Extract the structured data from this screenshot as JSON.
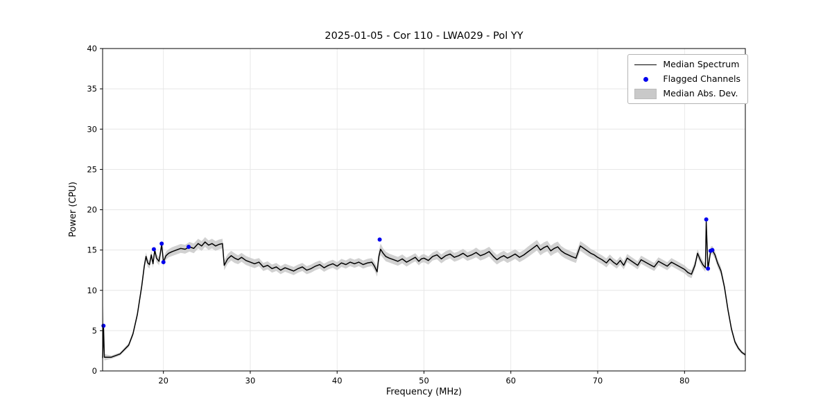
{
  "chart_data": {
    "type": "line",
    "title": "2025-01-05 - Cor 110 - LWA029 - Pol YY",
    "xlabel": "Frequency (MHz)",
    "ylabel": "Power (CPU)",
    "xlim": [
      13,
      87
    ],
    "ylim": [
      0,
      40
    ],
    "xticks": [
      20,
      30,
      40,
      50,
      60,
      70,
      80
    ],
    "yticks": [
      0,
      5,
      10,
      15,
      20,
      25,
      30,
      35,
      40
    ],
    "grid": true,
    "colors": {
      "median_line": "#000000",
      "flagged": "#0000ee",
      "mad_band": "#c9c9c9",
      "grid": "#e6e6e6",
      "spine": "#000000"
    },
    "legend": {
      "position": "upper right",
      "items": [
        {
          "label": "Median Spectrum",
          "type": "line",
          "color": "#000000"
        },
        {
          "label": "Flagged Channels",
          "type": "marker",
          "color": "#0000ee"
        },
        {
          "label": "Median Abs. Dev.",
          "type": "patch",
          "color": "#c9c9c9"
        }
      ]
    },
    "series": [
      {
        "name": "Median Spectrum",
        "note": "points are [frequency_MHz, power_CPU, median_abs_dev]",
        "points": [
          [
            13.0,
            1.6,
            0.3
          ],
          [
            13.1,
            5.6,
            2.6
          ],
          [
            13.2,
            1.7,
            0.4
          ],
          [
            14.0,
            1.7,
            0.2
          ],
          [
            15.0,
            2.1,
            0.2
          ],
          [
            16.0,
            3.2,
            0.25
          ],
          [
            16.5,
            4.6,
            0.3
          ],
          [
            17.0,
            7.0,
            0.35
          ],
          [
            17.5,
            10.5,
            0.4
          ],
          [
            17.8,
            13.0,
            0.45
          ],
          [
            18.0,
            14.2,
            0.5
          ],
          [
            18.2,
            13.4,
            0.5
          ],
          [
            18.4,
            13.2,
            0.5
          ],
          [
            18.6,
            14.4,
            0.5
          ],
          [
            18.8,
            13.3,
            0.5
          ],
          [
            19.0,
            15.0,
            0.5
          ],
          [
            19.2,
            14.0,
            0.5
          ],
          [
            19.5,
            13.6,
            0.5
          ],
          [
            19.8,
            15.7,
            0.5
          ],
          [
            20.0,
            13.5,
            0.5
          ],
          [
            20.3,
            14.3,
            0.5
          ],
          [
            20.6,
            14.6,
            0.5
          ],
          [
            21.0,
            14.8,
            0.55
          ],
          [
            21.5,
            15.0,
            0.55
          ],
          [
            22.0,
            15.2,
            0.55
          ],
          [
            22.5,
            15.1,
            0.55
          ],
          [
            23.0,
            15.4,
            0.6
          ],
          [
            23.5,
            15.2,
            0.6
          ],
          [
            24.0,
            15.8,
            0.6
          ],
          [
            24.4,
            15.5,
            0.6
          ],
          [
            24.8,
            16.0,
            0.6
          ],
          [
            25.2,
            15.6,
            0.6
          ],
          [
            25.6,
            15.8,
            0.6
          ],
          [
            26.0,
            15.5,
            0.6
          ],
          [
            26.4,
            15.7,
            0.6
          ],
          [
            26.8,
            15.8,
            0.6
          ],
          [
            27.0,
            13.1,
            0.6
          ],
          [
            27.4,
            13.9,
            0.6
          ],
          [
            27.8,
            14.3,
            0.6
          ],
          [
            28.2,
            14.0,
            0.6
          ],
          [
            28.6,
            13.8,
            0.55
          ],
          [
            29.0,
            14.1,
            0.55
          ],
          [
            29.5,
            13.7,
            0.55
          ],
          [
            30.0,
            13.5,
            0.55
          ],
          [
            30.5,
            13.3,
            0.55
          ],
          [
            31.0,
            13.5,
            0.5
          ],
          [
            31.5,
            12.9,
            0.5
          ],
          [
            32.0,
            13.1,
            0.5
          ],
          [
            32.5,
            12.7,
            0.5
          ],
          [
            33.0,
            12.9,
            0.5
          ],
          [
            33.5,
            12.5,
            0.5
          ],
          [
            34.0,
            12.8,
            0.5
          ],
          [
            34.5,
            12.6,
            0.5
          ],
          [
            35.0,
            12.4,
            0.5
          ],
          [
            35.5,
            12.7,
            0.5
          ],
          [
            36.0,
            12.9,
            0.5
          ],
          [
            36.5,
            12.5,
            0.5
          ],
          [
            37.0,
            12.7,
            0.5
          ],
          [
            37.5,
            13.0,
            0.5
          ],
          [
            38.0,
            13.2,
            0.5
          ],
          [
            38.5,
            12.8,
            0.5
          ],
          [
            39.0,
            13.1,
            0.5
          ],
          [
            39.5,
            13.3,
            0.5
          ],
          [
            40.0,
            13.0,
            0.5
          ],
          [
            40.5,
            13.4,
            0.5
          ],
          [
            41.0,
            13.2,
            0.5
          ],
          [
            41.5,
            13.5,
            0.5
          ],
          [
            42.0,
            13.3,
            0.5
          ],
          [
            42.5,
            13.5,
            0.5
          ],
          [
            43.0,
            13.2,
            0.5
          ],
          [
            43.5,
            13.4,
            0.5
          ],
          [
            44.0,
            13.5,
            0.5
          ],
          [
            44.3,
            13.0,
            0.5
          ],
          [
            44.6,
            12.3,
            0.6
          ],
          [
            44.8,
            14.2,
            0.7
          ],
          [
            45.0,
            15.1,
            0.7
          ],
          [
            45.3,
            14.6,
            0.6
          ],
          [
            45.6,
            14.2,
            0.6
          ],
          [
            46.0,
            14.0,
            0.55
          ],
          [
            46.5,
            13.8,
            0.55
          ],
          [
            47.0,
            13.6,
            0.55
          ],
          [
            47.5,
            13.9,
            0.55
          ],
          [
            48.0,
            13.5,
            0.55
          ],
          [
            48.5,
            13.8,
            0.5
          ],
          [
            49.0,
            14.1,
            0.5
          ],
          [
            49.4,
            13.6,
            0.5
          ],
          [
            49.7,
            13.9,
            0.5
          ],
          [
            50.0,
            14.0,
            0.5
          ],
          [
            50.5,
            13.7,
            0.5
          ],
          [
            51.0,
            14.2,
            0.5
          ],
          [
            51.5,
            14.4,
            0.55
          ],
          [
            52.0,
            13.9,
            0.55
          ],
          [
            52.5,
            14.3,
            0.55
          ],
          [
            53.0,
            14.5,
            0.55
          ],
          [
            53.5,
            14.1,
            0.55
          ],
          [
            54.0,
            14.3,
            0.55
          ],
          [
            54.5,
            14.6,
            0.55
          ],
          [
            55.0,
            14.2,
            0.55
          ],
          [
            55.5,
            14.4,
            0.55
          ],
          [
            56.0,
            14.7,
            0.6
          ],
          [
            56.5,
            14.3,
            0.6
          ],
          [
            57.0,
            14.5,
            0.6
          ],
          [
            57.5,
            14.8,
            0.6
          ],
          [
            58.0,
            14.2,
            0.6
          ],
          [
            58.4,
            13.8,
            0.6
          ],
          [
            58.8,
            14.1,
            0.6
          ],
          [
            59.2,
            14.3,
            0.6
          ],
          [
            59.6,
            14.0,
            0.6
          ],
          [
            60.0,
            14.2,
            0.6
          ],
          [
            60.5,
            14.5,
            0.6
          ],
          [
            61.0,
            14.1,
            0.6
          ],
          [
            61.5,
            14.4,
            0.6
          ],
          [
            62.0,
            14.8,
            0.65
          ],
          [
            62.5,
            15.2,
            0.65
          ],
          [
            63.0,
            15.6,
            0.65
          ],
          [
            63.4,
            15.0,
            0.65
          ],
          [
            63.8,
            15.3,
            0.65
          ],
          [
            64.2,
            15.5,
            0.65
          ],
          [
            64.6,
            14.9,
            0.65
          ],
          [
            65.0,
            15.2,
            0.65
          ],
          [
            65.4,
            15.4,
            0.65
          ],
          [
            65.8,
            14.9,
            0.6
          ],
          [
            66.2,
            14.6,
            0.6
          ],
          [
            66.6,
            14.4,
            0.6
          ],
          [
            67.0,
            14.2,
            0.6
          ],
          [
            67.5,
            14.0,
            0.6
          ],
          [
            68.0,
            15.5,
            0.6
          ],
          [
            68.4,
            15.2,
            0.6
          ],
          [
            68.8,
            14.9,
            0.6
          ],
          [
            69.2,
            14.6,
            0.55
          ],
          [
            69.6,
            14.4,
            0.55
          ],
          [
            70.0,
            14.1,
            0.55
          ],
          [
            70.5,
            13.8,
            0.55
          ],
          [
            71.0,
            13.4,
            0.55
          ],
          [
            71.4,
            13.9,
            0.55
          ],
          [
            71.8,
            13.5,
            0.5
          ],
          [
            72.2,
            13.2,
            0.5
          ],
          [
            72.6,
            13.7,
            0.5
          ],
          [
            73.0,
            13.1,
            0.5
          ],
          [
            73.4,
            14.0,
            0.5
          ],
          [
            73.8,
            13.7,
            0.5
          ],
          [
            74.2,
            13.4,
            0.5
          ],
          [
            74.6,
            13.1,
            0.5
          ],
          [
            75.0,
            13.8,
            0.5
          ],
          [
            75.5,
            13.5,
            0.5
          ],
          [
            76.0,
            13.2,
            0.5
          ],
          [
            76.5,
            12.9,
            0.5
          ],
          [
            77.0,
            13.6,
            0.5
          ],
          [
            77.5,
            13.3,
            0.5
          ],
          [
            78.0,
            13.0,
            0.5
          ],
          [
            78.5,
            13.5,
            0.5
          ],
          [
            79.0,
            13.2,
            0.5
          ],
          [
            79.5,
            12.9,
            0.5
          ],
          [
            80.0,
            12.6,
            0.5
          ],
          [
            80.4,
            12.2,
            0.5
          ],
          [
            80.8,
            12.0,
            0.5
          ],
          [
            81.2,
            13.1,
            0.5
          ],
          [
            81.5,
            14.6,
            0.5
          ],
          [
            81.8,
            13.8,
            0.5
          ],
          [
            82.1,
            13.2,
            0.5
          ],
          [
            82.4,
            12.8,
            0.5
          ],
          [
            82.5,
            18.5,
            0.5
          ],
          [
            82.7,
            12.6,
            0.5
          ],
          [
            83.0,
            14.9,
            0.5
          ],
          [
            83.2,
            15.0,
            0.5
          ],
          [
            83.5,
            14.4,
            0.5
          ],
          [
            83.8,
            13.4,
            0.5
          ],
          [
            84.2,
            12.4,
            0.5
          ],
          [
            84.6,
            10.4,
            0.45
          ],
          [
            85.0,
            7.6,
            0.4
          ],
          [
            85.4,
            5.2,
            0.35
          ],
          [
            85.8,
            3.6,
            0.3
          ],
          [
            86.2,
            2.8,
            0.25
          ],
          [
            86.6,
            2.3,
            0.2
          ],
          [
            87.0,
            2.0,
            0.2
          ]
        ]
      },
      {
        "name": "Flagged Channels",
        "note": "points are [frequency_MHz, power_CPU]",
        "points": [
          [
            13.1,
            5.6
          ],
          [
            18.9,
            15.1
          ],
          [
            19.8,
            15.8
          ],
          [
            20.0,
            13.5
          ],
          [
            22.9,
            15.4
          ],
          [
            44.9,
            16.3
          ],
          [
            82.5,
            18.8
          ],
          [
            82.7,
            12.7
          ],
          [
            83.0,
            14.9
          ],
          [
            83.2,
            15.0
          ]
        ]
      }
    ]
  }
}
